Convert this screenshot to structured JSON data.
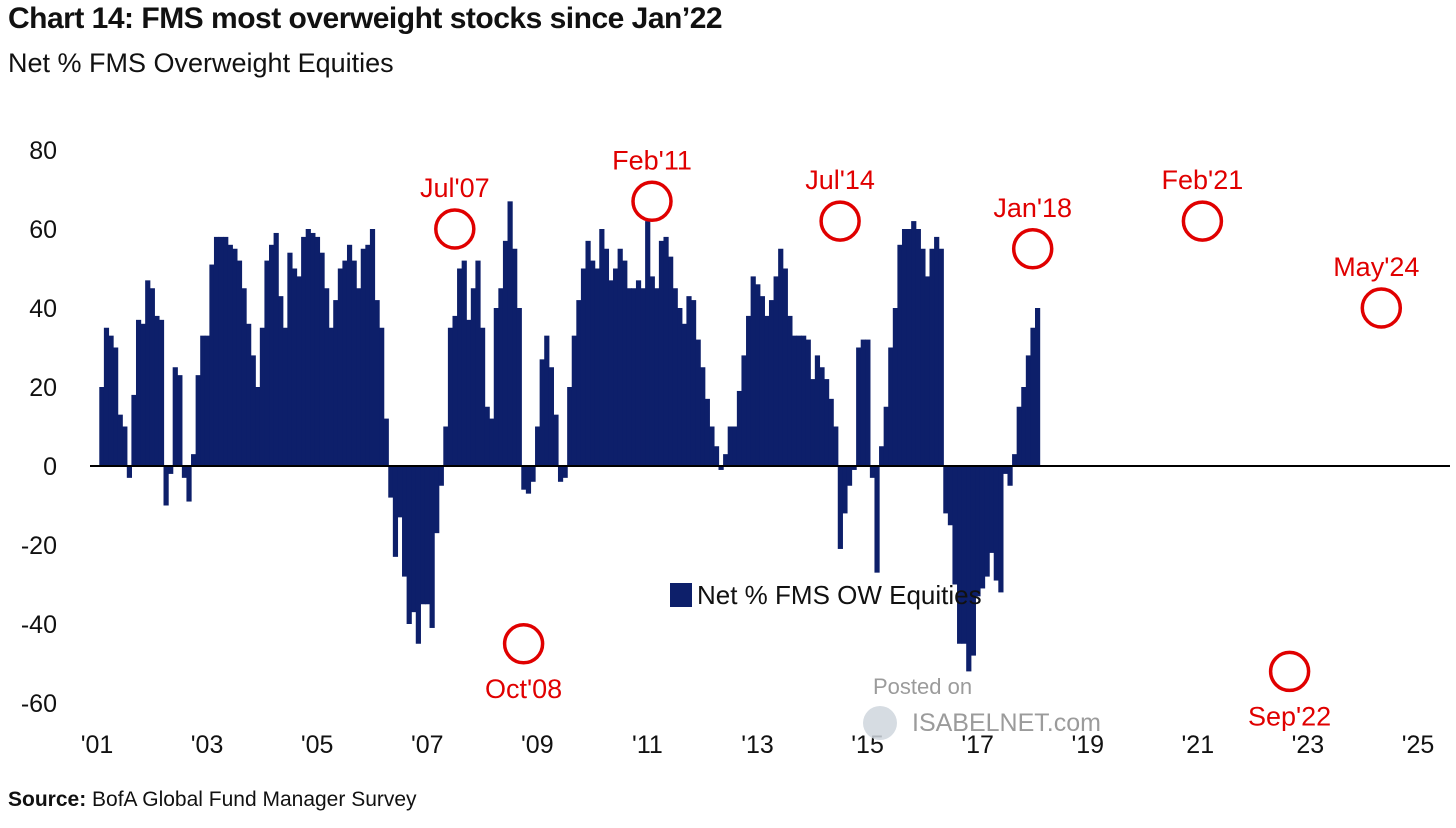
{
  "title": "Chart 14: FMS most overweight stocks since Jan’22",
  "subtitle": "Net % FMS Overweight Equities",
  "source_label": "Source:",
  "source_text": "BofA Global Fund Manager Survey",
  "watermark": {
    "line1": "Posted on",
    "line2": "ISABELNET.com"
  },
  "colors": {
    "bar": "#0d1f6a",
    "annotation": "#e00000",
    "axis": "#000000"
  },
  "chart_data": {
    "type": "bar",
    "title": "Chart 14: FMS most overweight stocks since Jan’22",
    "subtitle": "Net % FMS Overweight Equities",
    "ylim": [
      -60,
      80
    ],
    "y_ticks": [
      80,
      60,
      40,
      20,
      0,
      -20,
      -40,
      -60
    ],
    "x_ticks": [
      "'01",
      "'03",
      "'05",
      "'07",
      "'09",
      "'11",
      "'13",
      "'15",
      "'17",
      "'19",
      "'21",
      "'23",
      "'25"
    ],
    "x_range": [
      "2001-01",
      "2025-06"
    ],
    "legend": {
      "label": "Net % FMS OW Equities",
      "position": "center-bottom"
    },
    "series": [
      {
        "name": "Net % FMS OW Equities",
        "start": "2001-02",
        "frequency": "monthly",
        "values": [
          20,
          35,
          33,
          30,
          13,
          10,
          -3,
          18,
          37,
          36,
          47,
          45,
          38,
          37,
          -10,
          -2,
          25,
          23,
          -3,
          -9,
          3,
          23,
          33,
          33,
          51,
          58,
          58,
          58,
          56,
          55,
          52,
          45,
          36,
          28,
          20,
          35,
          52,
          56,
          59,
          43,
          35,
          54,
          50,
          48,
          58,
          60,
          59,
          58,
          54,
          45,
          35,
          42,
          50,
          52,
          56,
          52,
          45,
          55,
          56,
          60,
          42,
          35,
          12,
          -8,
          -23,
          -13,
          -28,
          -40,
          -37,
          -45,
          -35,
          -35,
          -41,
          -17,
          -5,
          10,
          35,
          38,
          50,
          52,
          37,
          45,
          52,
          35,
          15,
          12,
          40,
          45,
          57,
          67,
          55,
          40,
          -6,
          -7,
          -4,
          10,
          27,
          33,
          25,
          13,
          -4,
          -3,
          20,
          33,
          42,
          50,
          57,
          52,
          50,
          60,
          55,
          47,
          50,
          55,
          52,
          45,
          45,
          47,
          45,
          62,
          48,
          45,
          57,
          58,
          53,
          45,
          40,
          36,
          43,
          42,
          32,
          25,
          17,
          10,
          5,
          -1,
          3,
          10,
          10,
          19,
          28,
          38,
          48,
          46,
          43,
          38,
          42,
          48,
          55,
          50,
          38,
          33,
          33,
          33,
          32,
          22,
          28,
          25,
          22,
          17,
          10,
          -21,
          -12,
          -5,
          -1,
          30,
          32,
          32,
          -3,
          -27,
          5,
          15,
          30,
          40,
          56,
          60,
          60,
          62,
          60,
          55,
          48,
          55,
          58,
          55,
          -12,
          -15,
          -30,
          -45,
          -45,
          -52,
          -48,
          -33,
          -31,
          -28,
          -22,
          -29,
          -32,
          -2,
          -5,
          3,
          15,
          20,
          28,
          35,
          40
        ]
      }
    ],
    "annotations": [
      {
        "label": "Jul'07",
        "date": "2007-07",
        "value": 60
      },
      {
        "label": "Oct'08",
        "date": "2008-10",
        "value": -45
      },
      {
        "label": "Feb'11",
        "date": "2011-02",
        "value": 67
      },
      {
        "label": "Jul'14",
        "date": "2014-07",
        "value": 62
      },
      {
        "label": "Jan'18",
        "date": "2018-01",
        "value": 55
      },
      {
        "label": "Feb'21",
        "date": "2021-02",
        "value": 62
      },
      {
        "label": "Sep'22",
        "date": "2022-09",
        "value": -52
      },
      {
        "label": "May'24",
        "date": "2024-05",
        "value": 40
      }
    ]
  }
}
